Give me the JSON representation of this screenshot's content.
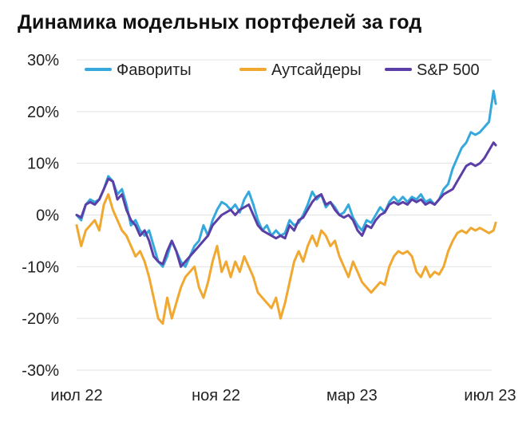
{
  "title": "Динамика модельных портфелей за год",
  "chart_data": {
    "type": "line",
    "title": "Динамика модельных портфелей за год",
    "xlabel": "",
    "ylabel": "",
    "ylim": [
      -30,
      30
    ],
    "y_ticks": [
      30,
      20,
      10,
      0,
      -10,
      -20,
      -30
    ],
    "y_tick_labels": [
      "30%",
      "20%",
      "10%",
      "0%",
      "-10%",
      "-20%",
      "-30%"
    ],
    "x_tick_labels": [
      "июл 22",
      "ноя 22",
      "мар 23",
      "июл 23"
    ],
    "x_tick_dates": [
      "2022-07-01",
      "2022-11-01",
      "2023-03-01",
      "2023-07-01"
    ],
    "grid": "horizontal",
    "legend_position": "top",
    "series": [
      {
        "name": "Фавориты",
        "color": "#35A9DC",
        "points": [
          [
            "2022-07-01",
            0
          ],
          [
            "2022-07-05",
            -1
          ],
          [
            "2022-07-09",
            2
          ],
          [
            "2022-07-13",
            3
          ],
          [
            "2022-07-17",
            2.5
          ],
          [
            "2022-07-21",
            3
          ],
          [
            "2022-07-25",
            5
          ],
          [
            "2022-07-29",
            7.5
          ],
          [
            "2022-08-02",
            6.5
          ],
          [
            "2022-08-06",
            4
          ],
          [
            "2022-08-10",
            5
          ],
          [
            "2022-08-14",
            2
          ],
          [
            "2022-08-18",
            -2
          ],
          [
            "2022-08-22",
            -1
          ],
          [
            "2022-08-26",
            -3
          ],
          [
            "2022-08-30",
            -4
          ],
          [
            "2022-09-03",
            -3
          ],
          [
            "2022-09-07",
            -6
          ],
          [
            "2022-09-11",
            -9
          ],
          [
            "2022-09-15",
            -10
          ],
          [
            "2022-09-19",
            -8
          ],
          [
            "2022-09-23",
            -5
          ],
          [
            "2022-09-27",
            -7
          ],
          [
            "2022-10-01",
            -9
          ],
          [
            "2022-10-05",
            -10
          ],
          [
            "2022-10-09",
            -8
          ],
          [
            "2022-10-13",
            -6
          ],
          [
            "2022-10-17",
            -5
          ],
          [
            "2022-10-21",
            -2
          ],
          [
            "2022-10-25",
            -4
          ],
          [
            "2022-10-29",
            -1
          ],
          [
            "2022-11-02",
            1
          ],
          [
            "2022-11-06",
            2.5
          ],
          [
            "2022-11-10",
            2
          ],
          [
            "2022-11-14",
            1
          ],
          [
            "2022-11-18",
            2
          ],
          [
            "2022-11-22",
            0.5
          ],
          [
            "2022-11-26",
            3
          ],
          [
            "2022-11-30",
            4.5
          ],
          [
            "2022-12-04",
            2
          ],
          [
            "2022-12-08",
            -1
          ],
          [
            "2022-12-12",
            -3
          ],
          [
            "2022-12-16",
            -2
          ],
          [
            "2022-12-20",
            -4
          ],
          [
            "2022-12-24",
            -3
          ],
          [
            "2022-12-28",
            -4
          ],
          [
            "2023-01-01",
            -3.5
          ],
          [
            "2023-01-05",
            -1
          ],
          [
            "2023-01-09",
            -2
          ],
          [
            "2023-01-13",
            -1.5
          ],
          [
            "2023-01-17",
            0
          ],
          [
            "2023-01-21",
            2
          ],
          [
            "2023-01-25",
            4.5
          ],
          [
            "2023-01-29",
            3
          ],
          [
            "2023-02-02",
            4
          ],
          [
            "2023-02-06",
            1.5
          ],
          [
            "2023-02-10",
            2.5
          ],
          [
            "2023-02-14",
            1.5
          ],
          [
            "2023-02-18",
            0
          ],
          [
            "2023-02-22",
            0.5
          ],
          [
            "2023-02-26",
            2
          ],
          [
            "2023-03-02",
            -0.5
          ],
          [
            "2023-03-06",
            -2
          ],
          [
            "2023-03-10",
            -3
          ],
          [
            "2023-03-14",
            -1
          ],
          [
            "2023-03-18",
            -1.5
          ],
          [
            "2023-03-22",
            0
          ],
          [
            "2023-03-26",
            1.5
          ],
          [
            "2023-03-30",
            0.5
          ],
          [
            "2023-04-03",
            2.5
          ],
          [
            "2023-04-07",
            3.5
          ],
          [
            "2023-04-11",
            2.5
          ],
          [
            "2023-04-15",
            3.5
          ],
          [
            "2023-04-19",
            2.5
          ],
          [
            "2023-04-23",
            3.5
          ],
          [
            "2023-04-27",
            3
          ],
          [
            "2023-05-01",
            4
          ],
          [
            "2023-05-05",
            2.5
          ],
          [
            "2023-05-09",
            3
          ],
          [
            "2023-05-13",
            2
          ],
          [
            "2023-05-17",
            3
          ],
          [
            "2023-05-21",
            5
          ],
          [
            "2023-05-25",
            6
          ],
          [
            "2023-05-29",
            9
          ],
          [
            "2023-06-02",
            11
          ],
          [
            "2023-06-06",
            13
          ],
          [
            "2023-06-10",
            14
          ],
          [
            "2023-06-14",
            16
          ],
          [
            "2023-06-18",
            15.5
          ],
          [
            "2023-06-22",
            16
          ],
          [
            "2023-06-26",
            17
          ],
          [
            "2023-06-30",
            18
          ],
          [
            "2023-07-04",
            24
          ],
          [
            "2023-07-06",
            21.5
          ]
        ]
      },
      {
        "name": "Аутсайдеры",
        "color": "#F0A830",
        "points": [
          [
            "2022-07-01",
            -2
          ],
          [
            "2022-07-05",
            -6
          ],
          [
            "2022-07-09",
            -3
          ],
          [
            "2022-07-13",
            -2
          ],
          [
            "2022-07-17",
            -1
          ],
          [
            "2022-07-21",
            -3
          ],
          [
            "2022-07-25",
            2
          ],
          [
            "2022-07-29",
            4
          ],
          [
            "2022-08-02",
            1
          ],
          [
            "2022-08-06",
            -1
          ],
          [
            "2022-08-10",
            -3
          ],
          [
            "2022-08-14",
            -4
          ],
          [
            "2022-08-18",
            -6
          ],
          [
            "2022-08-22",
            -8
          ],
          [
            "2022-08-26",
            -7
          ],
          [
            "2022-08-30",
            -9
          ],
          [
            "2022-09-03",
            -12
          ],
          [
            "2022-09-07",
            -16
          ],
          [
            "2022-09-11",
            -20
          ],
          [
            "2022-09-15",
            -21
          ],
          [
            "2022-09-19",
            -16
          ],
          [
            "2022-09-23",
            -20
          ],
          [
            "2022-09-27",
            -17
          ],
          [
            "2022-10-01",
            -14
          ],
          [
            "2022-10-05",
            -12
          ],
          [
            "2022-10-09",
            -11
          ],
          [
            "2022-10-13",
            -10
          ],
          [
            "2022-10-17",
            -14
          ],
          [
            "2022-10-21",
            -16
          ],
          [
            "2022-10-25",
            -13
          ],
          [
            "2022-10-29",
            -9
          ],
          [
            "2022-11-02",
            -6
          ],
          [
            "2022-11-06",
            -11
          ],
          [
            "2022-11-10",
            -9
          ],
          [
            "2022-11-14",
            -12
          ],
          [
            "2022-11-18",
            -9
          ],
          [
            "2022-11-22",
            -11
          ],
          [
            "2022-11-26",
            -8
          ],
          [
            "2022-11-30",
            -10
          ],
          [
            "2022-12-04",
            -12
          ],
          [
            "2022-12-08",
            -15
          ],
          [
            "2022-12-12",
            -16
          ],
          [
            "2022-12-16",
            -17
          ],
          [
            "2022-12-20",
            -18
          ],
          [
            "2022-12-24",
            -16
          ],
          [
            "2022-12-28",
            -20
          ],
          [
            "2023-01-01",
            -17
          ],
          [
            "2023-01-05",
            -13
          ],
          [
            "2023-01-09",
            -9
          ],
          [
            "2023-01-13",
            -7
          ],
          [
            "2023-01-17",
            -9
          ],
          [
            "2023-01-21",
            -6
          ],
          [
            "2023-01-25",
            -4
          ],
          [
            "2023-01-29",
            -6
          ],
          [
            "2023-02-02",
            -3
          ],
          [
            "2023-02-06",
            -4
          ],
          [
            "2023-02-10",
            -6
          ],
          [
            "2023-02-14",
            -5
          ],
          [
            "2023-02-18",
            -8
          ],
          [
            "2023-02-22",
            -10
          ],
          [
            "2023-02-26",
            -12
          ],
          [
            "2023-03-02",
            -9
          ],
          [
            "2023-03-06",
            -11
          ],
          [
            "2023-03-10",
            -13
          ],
          [
            "2023-03-14",
            -14
          ],
          [
            "2023-03-18",
            -15
          ],
          [
            "2023-03-22",
            -14
          ],
          [
            "2023-03-26",
            -13
          ],
          [
            "2023-03-30",
            -13.5
          ],
          [
            "2023-04-03",
            -10
          ],
          [
            "2023-04-07",
            -8
          ],
          [
            "2023-04-11",
            -7
          ],
          [
            "2023-04-15",
            -7.5
          ],
          [
            "2023-04-19",
            -7
          ],
          [
            "2023-04-23",
            -8
          ],
          [
            "2023-04-27",
            -11
          ],
          [
            "2023-05-01",
            -12
          ],
          [
            "2023-05-05",
            -10
          ],
          [
            "2023-05-09",
            -12
          ],
          [
            "2023-05-13",
            -11
          ],
          [
            "2023-05-17",
            -11.5
          ],
          [
            "2023-05-21",
            -10
          ],
          [
            "2023-05-25",
            -7
          ],
          [
            "2023-05-29",
            -5
          ],
          [
            "2023-06-02",
            -3.5
          ],
          [
            "2023-06-06",
            -3
          ],
          [
            "2023-06-10",
            -3.5
          ],
          [
            "2023-06-14",
            -2.5
          ],
          [
            "2023-06-18",
            -3
          ],
          [
            "2023-06-22",
            -2.5
          ],
          [
            "2023-06-26",
            -3
          ],
          [
            "2023-06-30",
            -3.5
          ],
          [
            "2023-07-04",
            -3
          ],
          [
            "2023-07-06",
            -1.5
          ]
        ]
      },
      {
        "name": "S&P 500",
        "color": "#5B3FA6",
        "points": [
          [
            "2022-07-01",
            0
          ],
          [
            "2022-07-05",
            -0.5
          ],
          [
            "2022-07-09",
            2
          ],
          [
            "2022-07-13",
            2.5
          ],
          [
            "2022-07-17",
            2
          ],
          [
            "2022-07-21",
            3
          ],
          [
            "2022-07-25",
            5
          ],
          [
            "2022-07-29",
            7
          ],
          [
            "2022-08-02",
            6.5
          ],
          [
            "2022-08-06",
            3
          ],
          [
            "2022-08-10",
            4
          ],
          [
            "2022-08-14",
            1
          ],
          [
            "2022-08-18",
            -1
          ],
          [
            "2022-08-22",
            -2
          ],
          [
            "2022-08-26",
            -4
          ],
          [
            "2022-08-30",
            -3
          ],
          [
            "2022-09-03",
            -5
          ],
          [
            "2022-09-07",
            -8
          ],
          [
            "2022-09-11",
            -9
          ],
          [
            "2022-09-15",
            -9.5
          ],
          [
            "2022-09-19",
            -7
          ],
          [
            "2022-09-23",
            -5
          ],
          [
            "2022-09-27",
            -7
          ],
          [
            "2022-10-01",
            -10
          ],
          [
            "2022-10-05",
            -9
          ],
          [
            "2022-10-09",
            -8
          ],
          [
            "2022-10-13",
            -7
          ],
          [
            "2022-10-17",
            -6
          ],
          [
            "2022-10-21",
            -5
          ],
          [
            "2022-10-25",
            -4
          ],
          [
            "2022-10-29",
            -2
          ],
          [
            "2022-11-02",
            -1
          ],
          [
            "2022-11-06",
            0
          ],
          [
            "2022-11-10",
            0.5
          ],
          [
            "2022-11-14",
            1
          ],
          [
            "2022-11-18",
            0
          ],
          [
            "2022-11-22",
            1
          ],
          [
            "2022-11-26",
            1.5
          ],
          [
            "2022-11-30",
            2
          ],
          [
            "2022-12-04",
            0
          ],
          [
            "2022-12-08",
            -2
          ],
          [
            "2022-12-12",
            -3
          ],
          [
            "2022-12-16",
            -3.5
          ],
          [
            "2022-12-20",
            -4
          ],
          [
            "2022-12-24",
            -4.5
          ],
          [
            "2022-12-28",
            -4
          ],
          [
            "2023-01-01",
            -4.5
          ],
          [
            "2023-01-05",
            -2
          ],
          [
            "2023-01-09",
            -3
          ],
          [
            "2023-01-13",
            -1
          ],
          [
            "2023-01-17",
            -0.5
          ],
          [
            "2023-01-21",
            1
          ],
          [
            "2023-01-25",
            2.5
          ],
          [
            "2023-01-29",
            3.5
          ],
          [
            "2023-02-02",
            4
          ],
          [
            "2023-02-06",
            2
          ],
          [
            "2023-02-10",
            2.5
          ],
          [
            "2023-02-14",
            1
          ],
          [
            "2023-02-18",
            0
          ],
          [
            "2023-02-22",
            -0.5
          ],
          [
            "2023-02-26",
            0
          ],
          [
            "2023-03-02",
            -1
          ],
          [
            "2023-03-06",
            -3
          ],
          [
            "2023-03-10",
            -4
          ],
          [
            "2023-03-14",
            -2
          ],
          [
            "2023-03-18",
            -2.5
          ],
          [
            "2023-03-22",
            -1
          ],
          [
            "2023-03-26",
            0
          ],
          [
            "2023-03-30",
            0.5
          ],
          [
            "2023-04-03",
            2
          ],
          [
            "2023-04-07",
            2.5
          ],
          [
            "2023-04-11",
            2
          ],
          [
            "2023-04-15",
            2.5
          ],
          [
            "2023-04-19",
            2
          ],
          [
            "2023-04-23",
            3
          ],
          [
            "2023-04-27",
            2.5
          ],
          [
            "2023-05-01",
            3
          ],
          [
            "2023-05-05",
            2
          ],
          [
            "2023-05-09",
            2.5
          ],
          [
            "2023-05-13",
            2
          ],
          [
            "2023-05-17",
            3
          ],
          [
            "2023-05-21",
            4
          ],
          [
            "2023-05-25",
            4.5
          ],
          [
            "2023-05-29",
            5
          ],
          [
            "2023-06-02",
            6.5
          ],
          [
            "2023-06-06",
            8
          ],
          [
            "2023-06-10",
            9.5
          ],
          [
            "2023-06-14",
            10
          ],
          [
            "2023-06-18",
            9.5
          ],
          [
            "2023-06-22",
            10
          ],
          [
            "2023-06-26",
            11
          ],
          [
            "2023-06-30",
            12.5
          ],
          [
            "2023-07-04",
            14
          ],
          [
            "2023-07-06",
            13.5
          ]
        ]
      }
    ]
  }
}
